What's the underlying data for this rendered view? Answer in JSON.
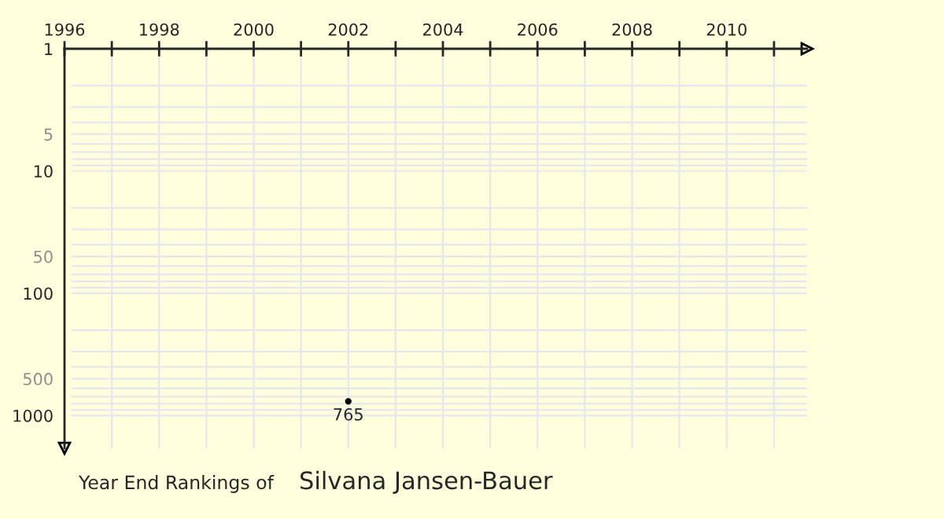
{
  "chart_data": {
    "type": "scatter",
    "title": "Year End Rankings of",
    "subtitle": "Silvana Jansen-Bauer",
    "x": [
      2002
    ],
    "values": [
      765
    ],
    "color": "#000000",
    "marker": "circle",
    "data_labels": true,
    "log": "y",
    "grid": true,
    "xlim": [
      1996,
      2011.7
    ],
    "ylim": [
      1850,
      1
    ],
    "xticks": [
      1996,
      {
        "value": 1997,
        "label": null
      },
      1998,
      {
        "value": 1999,
        "label": null
      },
      2000,
      {
        "value": 2001,
        "label": null
      },
      2002,
      {
        "value": 2003,
        "label": null
      },
      2004,
      {
        "value": 2005,
        "label": null
      },
      2006,
      {
        "value": 2007,
        "label": null
      },
      2008,
      {
        "value": 2009,
        "label": null
      },
      2010,
      {
        "value": 2011,
        "label": null
      }
    ],
    "yticks": [
      1,
      5,
      10,
      50,
      100,
      500,
      1000
    ]
  }
}
